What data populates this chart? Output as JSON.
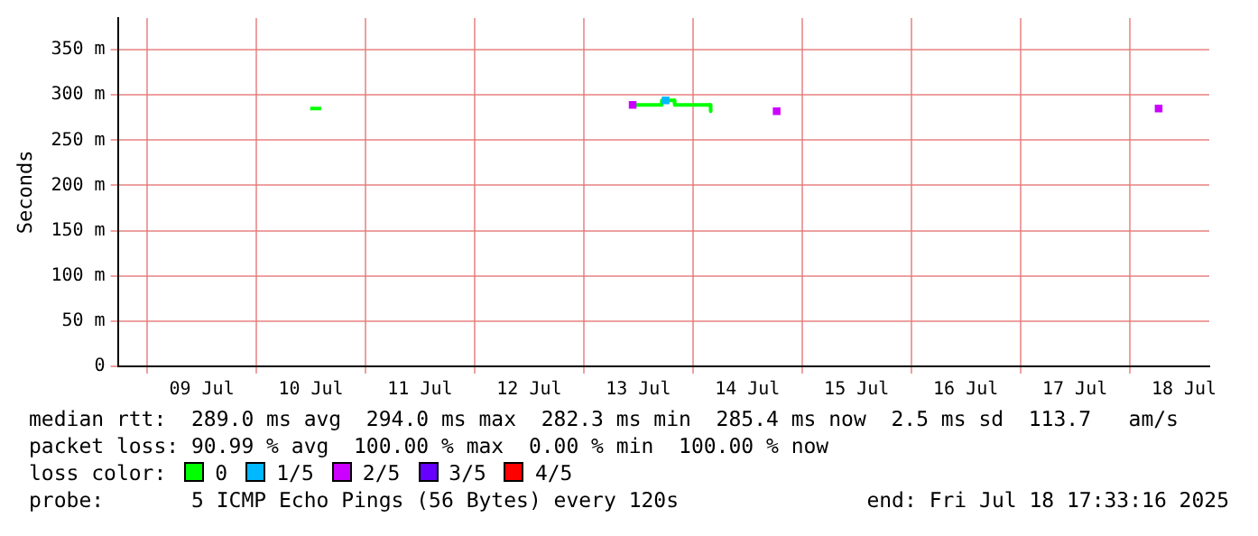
{
  "chart_data": {
    "type": "line",
    "ylabel": "Seconds",
    "legend_title": "loss color:",
    "legend": "bottom",
    "grid": true,
    "marker": "none",
    "xlim": [
      "2025-07-08T17:33",
      "2025-07-18T17:33"
    ],
    "xticks": [
      {
        "value": "2025-07-09T00:00",
        "label": null
      },
      {
        "value": "2025-07-09T12:00",
        "label": "09 Jul"
      },
      {
        "value": "2025-07-10T00:00",
        "label": null
      },
      {
        "value": "2025-07-10T12:00",
        "label": "10 Jul"
      },
      {
        "value": "2025-07-11T00:00",
        "label": null
      },
      {
        "value": "2025-07-11T12:00",
        "label": "11 Jul"
      },
      {
        "value": "2025-07-12T00:00",
        "label": null
      },
      {
        "value": "2025-07-12T12:00",
        "label": "12 Jul"
      },
      {
        "value": "2025-07-13T00:00",
        "label": null
      },
      {
        "value": "2025-07-13T12:00",
        "label": "13 Jul"
      },
      {
        "value": "2025-07-14T00:00",
        "label": null
      },
      {
        "value": "2025-07-14T12:00",
        "label": "14 Jul"
      },
      {
        "value": "2025-07-15T00:00",
        "label": null
      },
      {
        "value": "2025-07-15T12:00",
        "label": "15 Jul"
      },
      {
        "value": "2025-07-16T00:00",
        "label": null
      },
      {
        "value": "2025-07-16T12:00",
        "label": "16 Jul"
      },
      {
        "value": "2025-07-17T00:00",
        "label": null
      },
      {
        "value": "2025-07-17T12:00",
        "label": "17 Jul"
      },
      {
        "value": "2025-07-18T00:00",
        "label": null
      },
      {
        "value": "2025-07-18T12:00",
        "label": "18 Jul"
      }
    ],
    "ylim": [
      0,
      385
    ],
    "yticks": [
      0,
      {
        "value": 50,
        "label": "50 m"
      },
      {
        "value": 100,
        "label": "100 m"
      },
      {
        "value": 150,
        "label": "150 m"
      },
      {
        "value": 200,
        "label": "200 m"
      },
      {
        "value": 250,
        "label": "250 m"
      },
      {
        "value": 300,
        "label": "300 m"
      },
      {
        "value": 350,
        "label": "350 m"
      }
    ],
    "series": [
      {
        "name": "0",
        "color": "#00ff00",
        "x": [
          "2025-07-10T11:50",
          "2025-07-10T14:15",
          "2025-07-12T00:00",
          "2025-07-13T10:50",
          "2025-07-13T17:05",
          "2025-07-13T17:10",
          "2025-07-13T19:55",
          "2025-07-13T20:00",
          "2025-07-14T03:50",
          "2025-07-14T03:55"
        ],
        "values": [
          285,
          285,
          null,
          289,
          289,
          294,
          294,
          289,
          289,
          282
        ]
      },
      {
        "name": "1/5",
        "color": "#00b8ff",
        "type": "scatter",
        "marker": "square",
        "x": [
          "2025-07-13T18:00"
        ],
        "values": [
          294
        ]
      },
      {
        "name": "2/5",
        "color": "#cc00ff",
        "type": "scatter",
        "marker": "square",
        "x": [
          "2025-07-13T10:45",
          "2025-07-14T18:25",
          "2025-07-18T06:25"
        ],
        "values": [
          289,
          282,
          285
        ]
      },
      {
        "name": "3/5",
        "color": "#6600ff",
        "type": "scatter",
        "marker": "square"
      },
      {
        "name": "4/5",
        "color": "#ff0000",
        "type": "scatter",
        "marker": "square"
      }
    ],
    "annotations": [
      "median rtt:  289.0 ms avg  294.0 ms max  282.3 ms min  285.4 ms now  2.5 ms sd  113.7   am/s",
      "packet loss: 90.99 % avg  100.00 % max  0.00 % min  100.00 % now",
      "probe:       5 ICMP Echo Pings (56 Bytes) every 120s",
      "end: Fri Jul 18 17:33:16 2025"
    ]
  }
}
